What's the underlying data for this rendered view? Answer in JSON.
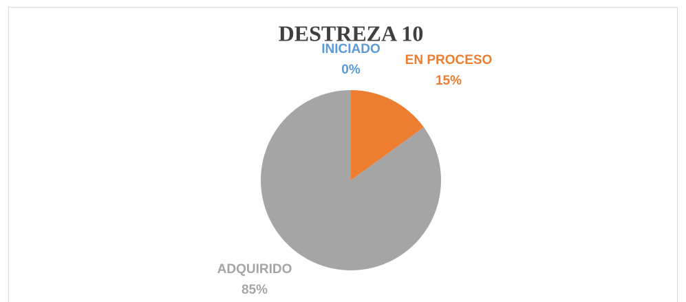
{
  "chart_data": {
    "type": "pie",
    "title": "DESTREZA 10",
    "categories": [
      "INICIADO",
      "EN PROCESO",
      "ADQUIRIDO"
    ],
    "values": [
      0,
      15,
      85
    ],
    "value_labels": [
      "0%",
      "15%",
      "85%"
    ],
    "colors": [
      "#5b9bd5",
      "#ed7d31",
      "#a5a5a5"
    ]
  }
}
